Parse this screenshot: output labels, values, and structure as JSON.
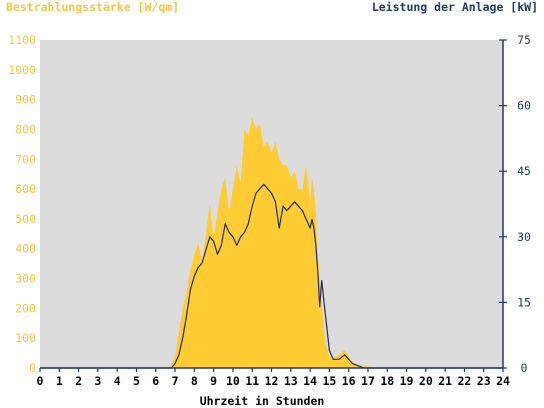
{
  "chart_data": {
    "type": "area",
    "title": "",
    "xlabel": "Uhrzeit in Stunden",
    "ylabel_left": "Bestrahlungsstärke [W/qm]",
    "ylabel_right": "Leistung der Anlage [kW]",
    "x_ticks": [
      "0",
      "1",
      "2",
      "3",
      "4",
      "5",
      "6",
      "7",
      "8",
      "9",
      "10",
      "11",
      "12",
      "13",
      "14",
      "15",
      "16",
      "17",
      "18",
      "19",
      "20",
      "21",
      "22",
      "23",
      "24"
    ],
    "y_left_ticks": [
      "0",
      "100",
      "200",
      "300",
      "400",
      "500",
      "600",
      "700",
      "800",
      "900",
      "1000",
      "1100"
    ],
    "y_right_ticks": [
      "0",
      "15",
      "30",
      "45",
      "60",
      "75"
    ],
    "xlim": [
      0,
      24
    ],
    "ylim_left": [
      0,
      1100
    ],
    "ylim_right": [
      0,
      75
    ],
    "grid": false,
    "colors": {
      "plot_background": "#dcdcdc",
      "irradiance_fill": "#ffcc33",
      "power_line": "#1e2f5e",
      "left_axis_text": "#f5c542",
      "right_axis_text": "#1e3a6e",
      "axis_line": "#1e3a6e"
    },
    "series": [
      {
        "axis": "left",
        "style": "area",
        "x": [
          0,
          6.6,
          6.8,
          7.0,
          7.2,
          7.4,
          7.6,
          7.8,
          8.0,
          8.2,
          8.4,
          8.6,
          8.8,
          9.0,
          9.2,
          9.4,
          9.6,
          9.8,
          10.0,
          10.2,
          10.4,
          10.6,
          10.8,
          11.0,
          11.2,
          11.4,
          11.6,
          11.8,
          12.0,
          12.2,
          12.4,
          12.6,
          12.8,
          13.0,
          13.2,
          13.4,
          13.6,
          13.8,
          14.0,
          14.1,
          14.2,
          14.3,
          14.4,
          14.5,
          14.6,
          14.8,
          15.0,
          15.2,
          15.5,
          15.8,
          16.0,
          16.2,
          16.5,
          17.0,
          17.5,
          24
        ],
        "values": [
          0,
          0,
          10,
          40,
          120,
          200,
          260,
          330,
          380,
          420,
          360,
          450,
          550,
          440,
          520,
          600,
          640,
          520,
          600,
          680,
          620,
          800,
          780,
          840,
          800,
          820,
          740,
          760,
          720,
          760,
          700,
          680,
          680,
          640,
          660,
          600,
          600,
          680,
          560,
          640,
          600,
          520,
          380,
          300,
          220,
          80,
          40,
          30,
          45,
          60,
          40,
          20,
          10,
          5,
          0,
          0
        ]
      },
      {
        "axis": "right",
        "style": "line",
        "x": [
          0,
          6.8,
          7.0,
          7.2,
          7.4,
          7.6,
          7.8,
          8.0,
          8.2,
          8.4,
          8.6,
          8.8,
          9.0,
          9.2,
          9.4,
          9.6,
          9.8,
          10.0,
          10.2,
          10.4,
          10.6,
          10.8,
          11.0,
          11.2,
          11.4,
          11.6,
          11.8,
          12.0,
          12.2,
          12.4,
          12.6,
          12.8,
          13.0,
          13.2,
          13.4,
          13.6,
          13.8,
          14.0,
          14.1,
          14.2,
          14.3,
          14.4,
          14.5,
          14.6,
          14.8,
          15.0,
          15.2,
          15.5,
          15.8,
          16.0,
          16.2,
          16.5,
          16.8,
          17.0,
          24
        ],
        "values": [
          0,
          0,
          1,
          3,
          7,
          12,
          18,
          21,
          23,
          24,
          27,
          30,
          29,
          26,
          28,
          33,
          31,
          30,
          28,
          30,
          31,
          33,
          37,
          40,
          41,
          42,
          41,
          40,
          38,
          32,
          37,
          36,
          37,
          38,
          37,
          36,
          34,
          32,
          34,
          32,
          28,
          22,
          14,
          20,
          12,
          4,
          2,
          2,
          3,
          2,
          1,
          0.5,
          0,
          0,
          0
        ]
      }
    ]
  }
}
